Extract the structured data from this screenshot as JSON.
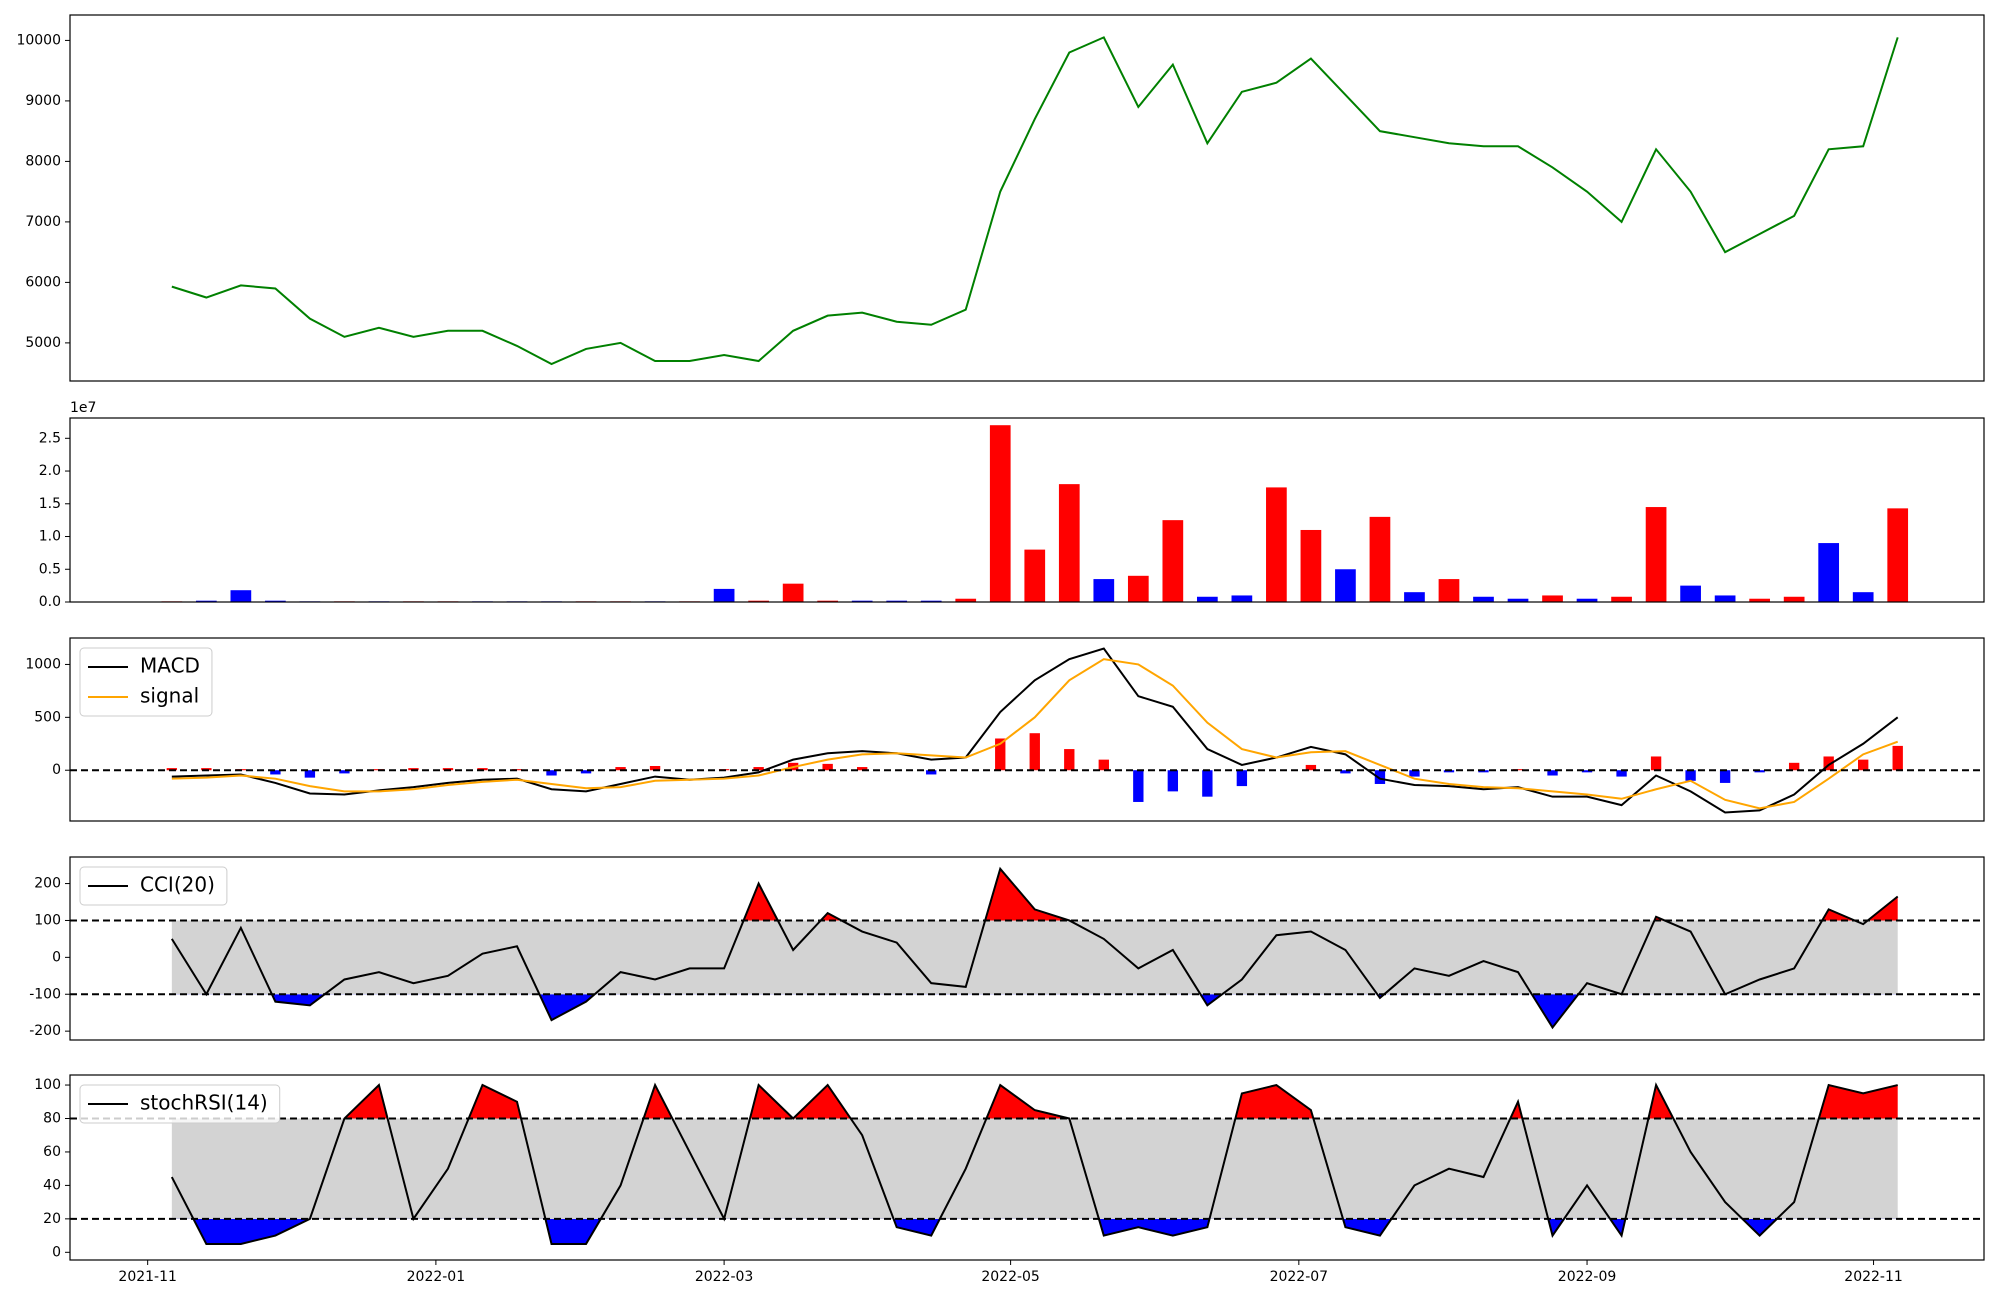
{
  "chart_data": [
    {
      "type": "line",
      "xlim": [
        2021.788,
        2022.897
      ],
      "ylim": [
        4370,
        10420
      ],
      "yticks": [
        5000,
        6000,
        7000,
        8000,
        9000,
        10000
      ],
      "series": [
        {
          "color": "green",
          "x": [
            2021.847,
            2021.867,
            2021.887,
            2021.907,
            2021.927,
            2021.947,
            2021.967,
            2021.987,
            2022.007,
            2022.027,
            2022.047,
            2022.067,
            2022.087,
            2022.107,
            2022.127,
            2022.147,
            2022.167,
            2022.187,
            2022.207,
            2022.227,
            2022.247,
            2022.267,
            2022.287,
            2022.307,
            2022.327,
            2022.347,
            2022.367,
            2022.387,
            2022.407,
            2022.427,
            2022.447,
            2022.467,
            2022.487,
            2022.507,
            2022.527,
            2022.547,
            2022.567,
            2022.587,
            2022.607,
            2022.627,
            2022.647,
            2022.667,
            2022.687,
            2022.707,
            2022.727,
            2022.747,
            2022.767,
            2022.787,
            2022.807,
            2022.827,
            2022.847
          ],
          "values": [
            5930,
            5750,
            5950,
            5900,
            5400,
            5100,
            5250,
            5100,
            5200,
            5200,
            4950,
            4650,
            4900,
            5000,
            4700,
            4700,
            4800,
            4700,
            5200,
            5450,
            5500,
            5350,
            5300,
            5550,
            7500,
            8700,
            9800,
            10050,
            8900,
            9600,
            8300,
            9150,
            9300,
            9700,
            9100,
            8500,
            8400,
            8300,
            8250,
            8250,
            7900,
            7500,
            7000,
            8200,
            7500,
            6500,
            6800,
            7100,
            8200,
            8250,
            10050
          ]
        }
      ]
    },
    {
      "type": "bar",
      "offset_text": "1e7",
      "xlim": [
        2021.788,
        2022.897
      ],
      "ylim": [
        0,
        28100000
      ],
      "yticks": [
        {
          "value": 0,
          "label": "0.0"
        },
        {
          "value": 5000000,
          "label": "0.5"
        },
        {
          "value": 10000000,
          "label": "1.0"
        },
        {
          "value": 15000000,
          "label": "1.5"
        },
        {
          "value": 20000000,
          "label": "2.0"
        },
        {
          "value": 25000000,
          "label": "2.5"
        }
      ],
      "x": [
        2021.847,
        2021.867,
        2021.887,
        2021.907,
        2021.927,
        2021.947,
        2021.967,
        2021.987,
        2022.007,
        2022.027,
        2022.047,
        2022.067,
        2022.087,
        2022.107,
        2022.127,
        2022.147,
        2022.167,
        2022.187,
        2022.207,
        2022.227,
        2022.247,
        2022.267,
        2022.287,
        2022.307,
        2022.327,
        2022.347,
        2022.367,
        2022.387,
        2022.407,
        2022.427,
        2022.447,
        2022.467,
        2022.487,
        2022.507,
        2022.527,
        2022.547,
        2022.567,
        2022.587,
        2022.607,
        2022.627,
        2022.647,
        2022.667,
        2022.687,
        2022.707,
        2022.727,
        2022.747,
        2022.767,
        2022.787,
        2022.807,
        2022.827,
        2022.847
      ],
      "values": [
        100000,
        200000,
        1800000,
        200000,
        100000,
        100000,
        100000,
        100000,
        100000,
        100000,
        100000,
        100000,
        100000,
        100000,
        100000,
        100000,
        2000000,
        200000,
        2800000,
        200000,
        200000,
        200000,
        200000,
        500000,
        27000000,
        8000000,
        18000000,
        3500000,
        4000000,
        12500000,
        800000,
        1000000,
        17500000,
        11000000,
        5000000,
        13000000,
        1500000,
        3500000,
        800000,
        500000,
        1000000,
        500000,
        800000,
        14500000,
        2500000,
        1000000,
        500000,
        800000,
        9000000,
        1500000,
        14300000
      ],
      "colors": [
        "red",
        "blue",
        "blue",
        "blue",
        "blue",
        "red",
        "blue",
        "red",
        "red",
        "blue",
        "blue",
        "blue",
        "red",
        "red",
        "blue",
        "red",
        "blue",
        "red",
        "red",
        "red",
        "blue",
        "blue",
        "blue",
        "red",
        "red",
        "red",
        "red",
        "blue",
        "red",
        "red",
        "blue",
        "blue",
        "red",
        "red",
        "blue",
        "red",
        "blue",
        "red",
        "blue",
        "blue",
        "red",
        "blue",
        "red",
        "red",
        "blue",
        "blue",
        "red",
        "red",
        "blue",
        "blue",
        "red"
      ]
    },
    {
      "type": "line",
      "xlim": [
        2021.788,
        2022.897
      ],
      "ylim": [
        -480,
        1250
      ],
      "yticks": [
        0,
        500,
        1000
      ],
      "hlines": [
        0
      ],
      "legend": "upper left",
      "x": [
        2021.847,
        2021.867,
        2021.887,
        2021.907,
        2021.927,
        2021.947,
        2021.967,
        2021.987,
        2022.007,
        2022.027,
        2022.047,
        2022.067,
        2022.087,
        2022.107,
        2022.127,
        2022.147,
        2022.167,
        2022.187,
        2022.207,
        2022.227,
        2022.247,
        2022.267,
        2022.287,
        2022.307,
        2022.327,
        2022.347,
        2022.367,
        2022.387,
        2022.407,
        2022.427,
        2022.447,
        2022.467,
        2022.487,
        2022.507,
        2022.527,
        2022.547,
        2022.567,
        2022.587,
        2022.607,
        2022.627,
        2022.647,
        2022.667,
        2022.687,
        2022.707,
        2022.727,
        2022.747,
        2022.767,
        2022.787,
        2022.807,
        2022.827,
        2022.847
      ],
      "histogram": {
        "up_color": "red",
        "down_color": "blue",
        "values": [
          20,
          20,
          10,
          -40,
          -70,
          -30,
          10,
          20,
          20,
          20,
          10,
          -50,
          -30,
          30,
          40,
          0,
          10,
          30,
          70,
          60,
          30,
          0,
          -40,
          0,
          300,
          350,
          200,
          100,
          -300,
          -200,
          -250,
          -150,
          0,
          50,
          -30,
          -130,
          -60,
          -20,
          -20,
          10,
          -50,
          -20,
          -60,
          130,
          -100,
          -120,
          -20,
          70,
          130,
          100,
          230
        ]
      },
      "series": [
        {
          "name": "MACD",
          "color": "black",
          "values": [
            -60,
            -50,
            -40,
            -120,
            -220,
            -230,
            -190,
            -160,
            -120,
            -90,
            -80,
            -180,
            -200,
            -130,
            -60,
            -90,
            -70,
            -20,
            100,
            160,
            180,
            160,
            100,
            120,
            550,
            850,
            1050,
            1150,
            700,
            600,
            200,
            50,
            120,
            220,
            150,
            -80,
            -140,
            -150,
            -180,
            -160,
            -250,
            -250,
            -330,
            -50,
            -200,
            -400,
            -380,
            -230,
            50,
            250,
            500
          ]
        },
        {
          "name": "signal",
          "color": "orange",
          "values": [
            -80,
            -70,
            -50,
            -80,
            -150,
            -200,
            -200,
            -180,
            -140,
            -110,
            -90,
            -130,
            -170,
            -160,
            -100,
            -90,
            -80,
            -50,
            30,
            100,
            150,
            160,
            140,
            120,
            250,
            500,
            850,
            1050,
            1000,
            800,
            450,
            200,
            120,
            170,
            180,
            50,
            -80,
            -130,
            -160,
            -170,
            -200,
            -230,
            -270,
            -180,
            -100,
            -280,
            -360,
            -300,
            -80,
            150,
            270
          ]
        }
      ]
    },
    {
      "type": "line",
      "xlim": [
        2021.788,
        2022.897
      ],
      "ylim": [
        -224,
        272
      ],
      "yticks": [
        -200,
        -100,
        0,
        100,
        200
      ],
      "hlines": [
        100,
        -100
      ],
      "band_color": "lightgray",
      "fill_above": "red",
      "fill_below": "blue",
      "legend": "upper left",
      "x": [
        2021.847,
        2021.867,
        2021.887,
        2021.907,
        2021.927,
        2021.947,
        2021.967,
        2021.987,
        2022.007,
        2022.027,
        2022.047,
        2022.067,
        2022.087,
        2022.107,
        2022.127,
        2022.147,
        2022.167,
        2022.187,
        2022.207,
        2022.227,
        2022.247,
        2022.267,
        2022.287,
        2022.307,
        2022.327,
        2022.347,
        2022.367,
        2022.387,
        2022.407,
        2022.427,
        2022.447,
        2022.467,
        2022.487,
        2022.507,
        2022.527,
        2022.547,
        2022.567,
        2022.587,
        2022.607,
        2022.627,
        2022.647,
        2022.667,
        2022.687,
        2022.707,
        2022.727,
        2022.747,
        2022.767,
        2022.787,
        2022.807,
        2022.827,
        2022.847
      ],
      "series": [
        {
          "name": "CCI(20)",
          "color": "black",
          "values": [
            50,
            -100,
            80,
            -120,
            -130,
            -60,
            -40,
            -70,
            -50,
            10,
            30,
            -170,
            -120,
            -40,
            -60,
            -30,
            -30,
            200,
            20,
            120,
            70,
            40,
            -70,
            -80,
            240,
            130,
            100,
            50,
            -30,
            20,
            -130,
            -60,
            60,
            70,
            20,
            -110,
            -30,
            -50,
            -10,
            -40,
            -190,
            -70,
            -100,
            110,
            70,
            -100,
            -60,
            -30,
            130,
            90,
            165
          ]
        }
      ]
    },
    {
      "type": "line",
      "xlim": [
        2021.788,
        2022.897
      ],
      "ylim": [
        -4.6,
        106
      ],
      "yticks": [
        0,
        20,
        40,
        60,
        80,
        100
      ],
      "hlines": [
        80,
        20
      ],
      "band_color": "lightgray",
      "fill_above": "red",
      "fill_below": "blue",
      "legend": "upper left",
      "xticks": [
        {
          "value": 2021.833,
          "label": "2021-11"
        },
        {
          "value": 2022.0,
          "label": "2022-01"
        },
        {
          "value": 2022.167,
          "label": "2022-03"
        },
        {
          "value": 2022.333,
          "label": "2022-05"
        },
        {
          "value": 2022.5,
          "label": "2022-07"
        },
        {
          "value": 2022.667,
          "label": "2022-09"
        },
        {
          "value": 2022.833,
          "label": "2022-11"
        }
      ],
      "x": [
        2021.847,
        2021.867,
        2021.887,
        2021.907,
        2021.927,
        2021.947,
        2021.967,
        2021.987,
        2022.007,
        2022.027,
        2022.047,
        2022.067,
        2022.087,
        2022.107,
        2022.127,
        2022.147,
        2022.167,
        2022.187,
        2022.207,
        2022.227,
        2022.247,
        2022.267,
        2022.287,
        2022.307,
        2022.327,
        2022.347,
        2022.367,
        2022.387,
        2022.407,
        2022.427,
        2022.447,
        2022.467,
        2022.487,
        2022.507,
        2022.527,
        2022.547,
        2022.567,
        2022.587,
        2022.607,
        2022.627,
        2022.647,
        2022.667,
        2022.687,
        2022.707,
        2022.727,
        2022.747,
        2022.767,
        2022.787,
        2022.807,
        2022.827,
        2022.847
      ],
      "series": [
        {
          "name": "stochRSI(14)",
          "color": "black",
          "values": [
            45,
            5,
            5,
            10,
            20,
            80,
            100,
            20,
            50,
            100,
            90,
            5,
            5,
            40,
            100,
            60,
            20,
            100,
            80,
            100,
            70,
            15,
            10,
            50,
            100,
            85,
            80,
            10,
            15,
            10,
            15,
            95,
            100,
            85,
            15,
            10,
            40,
            50,
            45,
            90,
            10,
            40,
            10,
            100,
            60,
            30,
            10,
            30,
            100,
            95,
            100
          ]
        }
      ]
    }
  ]
}
